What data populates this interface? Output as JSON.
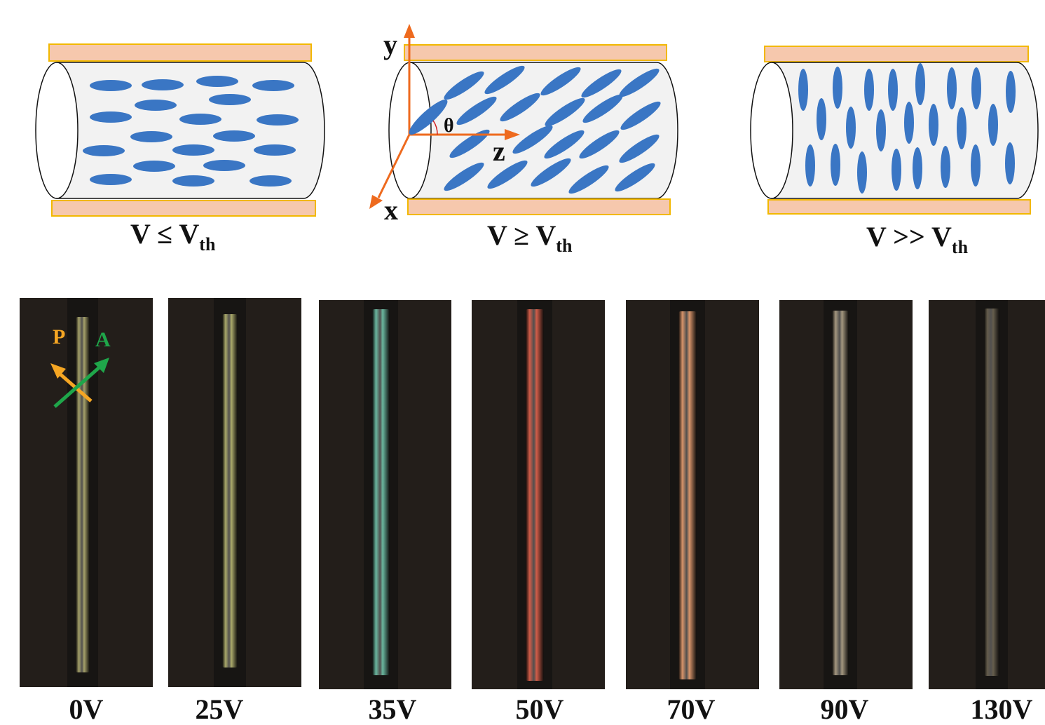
{
  "schematics": [
    {
      "id": "below-threshold",
      "condition": "V ≤ V",
      "subscript": "th",
      "orientation": "horizontal"
    },
    {
      "id": "above-threshold",
      "condition": "V ≥ V",
      "subscript": "th",
      "orientation": "tilted"
    },
    {
      "id": "far-above-threshold",
      "condition": "V >> V",
      "subscript": "th",
      "orientation": "vertical"
    }
  ],
  "axes": {
    "y": "y",
    "z": "z",
    "x": "x",
    "angle": "θ"
  },
  "polarizer": {
    "label": "P",
    "color": "#f5a623"
  },
  "analyzer": {
    "label": "A",
    "color": "#1fa64a"
  },
  "colors": {
    "molecule": "#3a76c4",
    "electrode_fill": "#f6c8ad",
    "electrode_border": "#f2b800",
    "axis": "#ee6a1e"
  },
  "micrographs": [
    {
      "voltage": "0V",
      "fiber_color": "#a5a16a"
    },
    {
      "voltage": "25V",
      "fiber_color": "#aaa96a"
    },
    {
      "voltage": "35V",
      "fiber_color": "#6ab8a0"
    },
    {
      "voltage": "50V",
      "fiber_color": "#d05c48"
    },
    {
      "voltage": "70V",
      "fiber_color": "#d7946a"
    },
    {
      "voltage": "90V",
      "fiber_color": "#a59880"
    },
    {
      "voltage": "130V",
      "fiber_color": "#655d4c"
    }
  ]
}
